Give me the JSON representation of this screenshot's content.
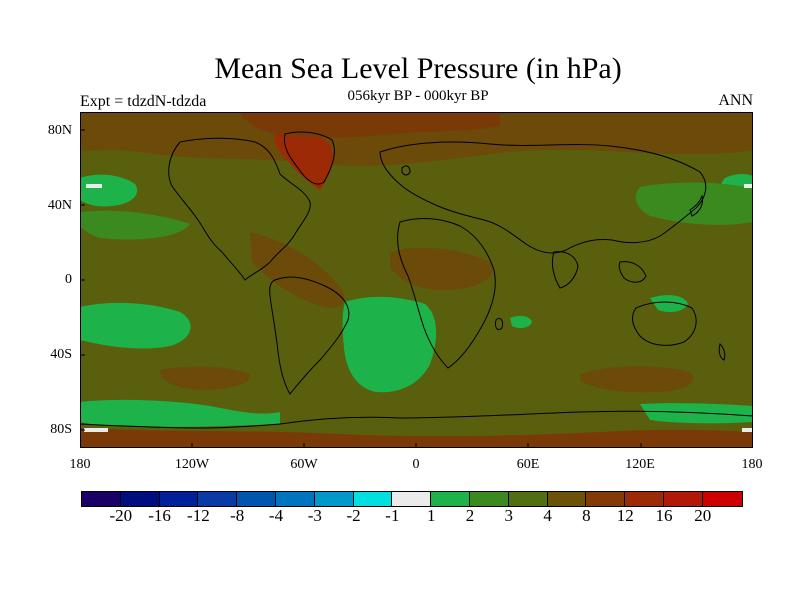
{
  "header": {
    "title": "Mean Sea Level Pressure (in hPa)",
    "subtitle": "056kyr BP - 000kyr BP",
    "left_label": "Expt = tdzdN-tdzda",
    "right_label": "ANN"
  },
  "axes": {
    "lat_labels": [
      "80N",
      "40N",
      "0",
      "40S",
      "80S"
    ],
    "lon_labels": [
      "180",
      "120W",
      "60W",
      "0",
      "60E",
      "120E",
      "180"
    ]
  },
  "colorbar": {
    "colors": [
      "#1a0066",
      "#000d80",
      "#00209a",
      "#0a3aa6",
      "#0055b0",
      "#0075bf",
      "#0099cc",
      "#00e0e0",
      "#ebebeb",
      "#1db34a",
      "#3a8a20",
      "#4f6f10",
      "#6b5208",
      "#833a08",
      "#9c2a06",
      "#b21808",
      "#cc0000"
    ],
    "labels": [
      "-20",
      "-16",
      "-12",
      "-8",
      "-4",
      "-3",
      "-2",
      "-1",
      "1",
      "2",
      "3",
      "4",
      "8",
      "12",
      "16",
      "20"
    ]
  },
  "palette": {
    "base": "#5a5f0e",
    "green": "#1db34a",
    "mid_green": "#3a8a20",
    "brown": "#6b4a0a",
    "dark_brown": "#7a3a08",
    "red": "#9c2a06",
    "white": "#ebebeb",
    "coast": "#000000"
  }
}
